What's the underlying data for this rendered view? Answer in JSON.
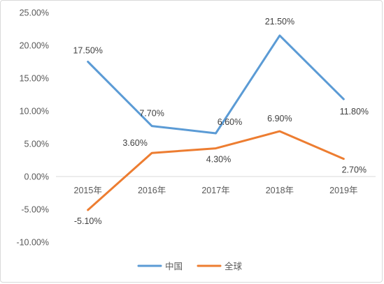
{
  "chart_data": {
    "type": "line",
    "categories": [
      "2015年",
      "2016年",
      "2017年",
      "2018年",
      "2019年"
    ],
    "series": [
      {
        "name": "中国",
        "values": [
          17.5,
          7.7,
          6.6,
          21.5,
          11.8
        ],
        "labels": [
          "17.50%",
          "7.70%",
          "6.60%",
          "21.50%",
          "11.80%"
        ],
        "color": "#5b9bd5"
      },
      {
        "name": "全球",
        "values": [
          -5.1,
          3.6,
          4.3,
          6.9,
          2.7
        ],
        "labels": [
          "-5.10%",
          "3.60%",
          "4.30%",
          "6.90%",
          "2.70%"
        ],
        "color": "#ed7d31"
      }
    ],
    "ylim": [
      -10,
      25
    ],
    "yticks": [
      25,
      20,
      15,
      10,
      5,
      0,
      -5,
      -10
    ],
    "ytick_labels": [
      "25.00%",
      "20.00%",
      "15.00%",
      "10.00%",
      "5.00%",
      "0.00%",
      "-5.00%",
      "-10.00%"
    ],
    "grid": false,
    "legend": "bottom-center",
    "title": "",
    "xlabel": "",
    "ylabel": ""
  }
}
